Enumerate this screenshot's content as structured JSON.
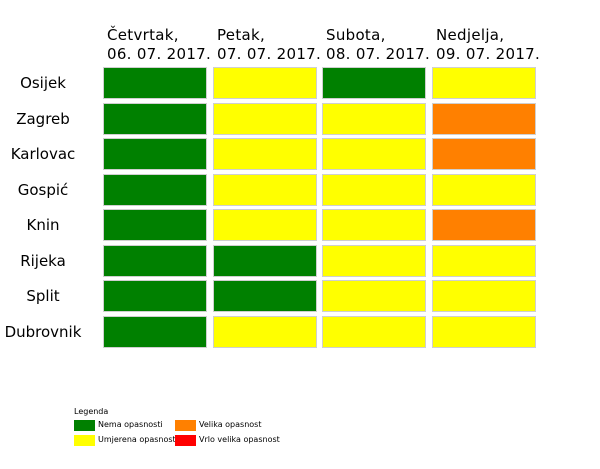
{
  "chart_data": {
    "type": "heatmap",
    "columns": [
      {
        "day": "Četvrtak,",
        "date": "06. 07. 2017."
      },
      {
        "day": "Petak,",
        "date": "07. 07. 2017."
      },
      {
        "day": "Subota,",
        "date": "08. 07. 2017."
      },
      {
        "day": "Nedjelja,",
        "date": "09. 07. 2017."
      }
    ],
    "rows": [
      "Osijek",
      "Zagreb",
      "Karlovac",
      "Gospić",
      "Knin",
      "Rijeka",
      "Split",
      "Dubrovnik"
    ],
    "levels": [
      {
        "label": "Nema opasnosti",
        "color": "#008000"
      },
      {
        "label": "Umjerena opasnost",
        "color": "#ffff00"
      },
      {
        "label": "Velika opasnost",
        "color": "#ff8000"
      },
      {
        "label": "Vrlo velika opasnost",
        "color": "#ff0000"
      }
    ],
    "values": [
      [
        0,
        1,
        0,
        1
      ],
      [
        0,
        1,
        1,
        2
      ],
      [
        0,
        1,
        1,
        2
      ],
      [
        0,
        1,
        1,
        1
      ],
      [
        0,
        1,
        1,
        2
      ],
      [
        0,
        0,
        1,
        1
      ],
      [
        0,
        0,
        1,
        1
      ],
      [
        0,
        1,
        1,
        1
      ]
    ]
  },
  "legend": {
    "title": "Legenda"
  }
}
